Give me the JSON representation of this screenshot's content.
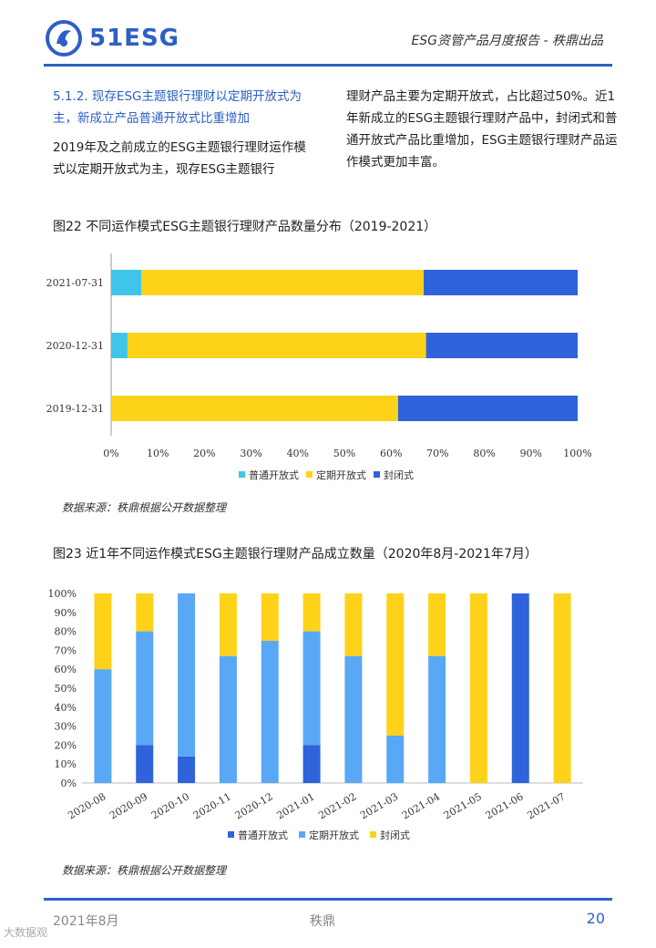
{
  "header": {
    "logo_text": "51ESG",
    "title": "ESG资管产品月度报告 - 秩鼎出品"
  },
  "section": {
    "heading": "5.1.2. 现存ESG主题银行理财以定期开放式为主，新成立产品普通开放式比重增加",
    "left_paragraph": "2019年及之前成立的ESG主题银行理财运作模式以定期开放式为主，现存ESG主题银行",
    "right_paragraph": "理财产品主要为定期开放式，占比超过50%。近1年新成立的ESG主题银行理财产品中，封闭式和普通开放式产品比重增加，ESG主题银行理财产品运作模式更加丰富。"
  },
  "figures": {
    "fig22_title": "图22 不同运作模式ESG主题银行理财产品数量分布（2019-2021）",
    "fig22_source": "数据来源：秩鼎根据公开数据整理",
    "fig23_title": "图23 近1年不同运作模式ESG主题银行理财产品成立数量（2020年8月-2021年7月）",
    "fig23_source": "数据来源：秩鼎根据公开数据整理"
  },
  "chart_data": [
    {
      "type": "bar",
      "orientation": "horizontal",
      "stacked": true,
      "categories": [
        "2021-07-31",
        "2020-12-31",
        "2019-12-31"
      ],
      "series": [
        {
          "name": "普通开放式",
          "values": [
            6.5,
            3.5,
            0
          ],
          "color": "#3fc5ea"
        },
        {
          "name": "定期开放式",
          "values": [
            60.5,
            64,
            61.5
          ],
          "color": "#ffd21a"
        },
        {
          "name": "封闭式",
          "values": [
            33,
            32.5,
            38.5
          ],
          "color": "#2e63db"
        }
      ],
      "xlim": [
        0,
        100
      ],
      "xticks": [
        "0%",
        "10%",
        "20%",
        "30%",
        "40%",
        "50%",
        "60%",
        "70%",
        "80%",
        "90%",
        "100%"
      ],
      "legend": "bottom"
    },
    {
      "type": "bar",
      "orientation": "vertical",
      "stacked": true,
      "categories": [
        "2020-08",
        "2020-09",
        "2020-10",
        "2020-11",
        "2020-12",
        "2021-01",
        "2021-02",
        "2021-03",
        "2021-04",
        "2021-05",
        "2021-06",
        "2021-07"
      ],
      "series": [
        {
          "name": "普通开放式",
          "values": [
            0,
            20,
            14,
            0,
            0,
            20,
            0,
            0,
            0,
            0,
            100,
            0
          ],
          "color": "#2e63db"
        },
        {
          "name": "定期开放式",
          "values": [
            60,
            60,
            86,
            67,
            75,
            60,
            67,
            25,
            67,
            0,
            0,
            0
          ],
          "color": "#58a8f5"
        },
        {
          "name": "封闭式",
          "values": [
            40,
            20,
            0,
            33,
            25,
            20,
            33,
            75,
            33,
            100,
            0,
            100
          ],
          "color": "#ffd21a"
        }
      ],
      "ylim": [
        0,
        100
      ],
      "yticks": [
        "0%",
        "10%",
        "20%",
        "30%",
        "40%",
        "50%",
        "60%",
        "70%",
        "80%",
        "90%",
        "100%"
      ],
      "legend": "bottom"
    }
  ],
  "footer": {
    "date": "2021年8月",
    "center": "秩鼎",
    "page": "20",
    "watermark": "大数据观"
  },
  "colors": {
    "brand": "#2d5fc4"
  }
}
